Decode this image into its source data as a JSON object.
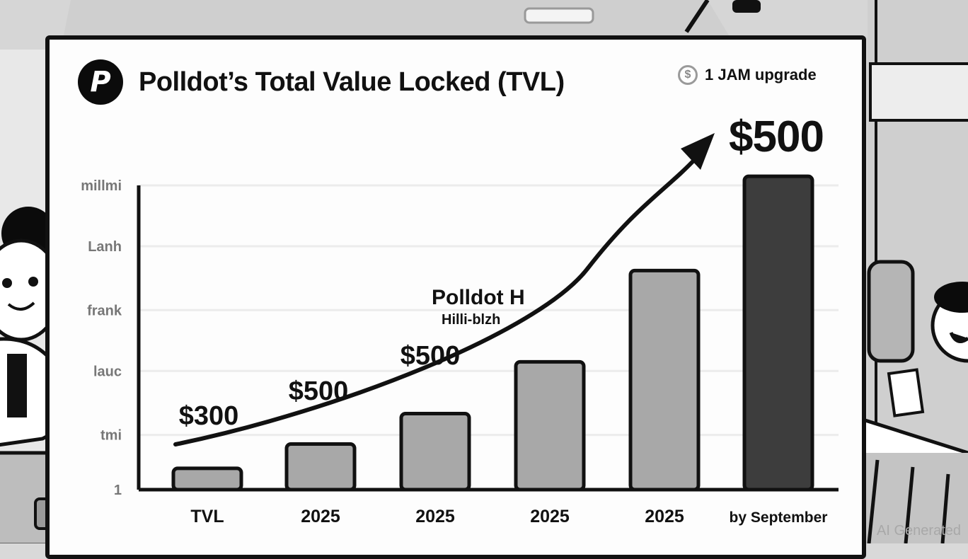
{
  "header": {
    "logo_glyph": "P",
    "title": "Polldot’s Total Value Locked (TVL)",
    "badge_icon": "dollar-coin-icon",
    "badge_text": "1 JAM upgrade",
    "highlight_value": "$500"
  },
  "annotation": {
    "line1": "Polldot H",
    "line2": "Hilli-blzh"
  },
  "watermark": "AI Generated",
  "colors": {
    "bar_light": "#a8a8a8",
    "bar_dark": "#3d3d3d",
    "outline": "#111111",
    "gridline": "#ececec",
    "tick_text": "#777777"
  },
  "chart_data": {
    "type": "bar",
    "title": "Polldot’s Total Value Locked (TVL)",
    "xlabel": "",
    "ylabel": "",
    "categories": [
      "TVL",
      "2025",
      "2025",
      "2025",
      "2025",
      "by September"
    ],
    "values": [
      7,
      15,
      25,
      42,
      72,
      103
    ],
    "highlight_index": 5,
    "ylim": [
      0,
      100
    ],
    "y_ticks": [
      {
        "label": "millmi",
        "value": 100
      },
      {
        "label": "Lanh",
        "value": 80
      },
      {
        "label": "frank",
        "value": 59
      },
      {
        "label": "lauc",
        "value": 39
      },
      {
        "label": "tmi",
        "value": 18
      },
      {
        "label": "1",
        "value": 0
      }
    ],
    "grid": true,
    "data_labels": [
      {
        "text": "$300",
        "category_index": 0
      },
      {
        "text": "$500",
        "category_index": 1
      },
      {
        "text": "$500",
        "category_index": 2
      }
    ],
    "trend_arrow": {
      "from_value": 15,
      "to_value": 110,
      "label": "$500"
    },
    "notes": "Relative bar heights; y-axis tick labels are illegible/garbled in source"
  }
}
